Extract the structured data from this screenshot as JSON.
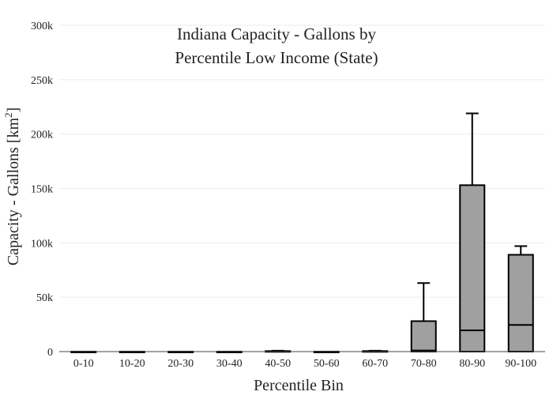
{
  "chart_data": {
    "type": "box",
    "title_lines": [
      "Indiana Capacity - Gallons by",
      "Percentile Low Income (State)"
    ],
    "xlabel": "Percentile Bin",
    "ylabel": {
      "main": "Capacity - Gallons  [km",
      "sup": "2",
      "close": "]"
    },
    "categories": [
      "0-10",
      "10-20",
      "20-30",
      "30-40",
      "40-50",
      "50-60",
      "60-70",
      "70-80",
      "80-90",
      "90-100"
    ],
    "boxes": [
      {
        "q1": 0,
        "median": 0,
        "q3": 0,
        "whisker_high": 0
      },
      {
        "q1": 0,
        "median": 0,
        "q3": 0,
        "whisker_high": 0
      },
      {
        "q1": 0,
        "median": 0,
        "q3": 0,
        "whisker_high": 0
      },
      {
        "q1": 0,
        "median": 0,
        "q3": 0,
        "whisker_high": 0
      },
      {
        "q1": 0,
        "median": 200,
        "q3": 500,
        "whisker_high": 800
      },
      {
        "q1": 0,
        "median": 0,
        "q3": 0,
        "whisker_high": 0
      },
      {
        "q1": 0,
        "median": 200,
        "q3": 500,
        "whisker_high": 800
      },
      {
        "q1": 0,
        "median": 1000,
        "q3": 28000,
        "whisker_high": 63000
      },
      {
        "q1": 0,
        "median": 19500,
        "q3": 153000,
        "whisker_high": 219000
      },
      {
        "q1": 0,
        "median": 24500,
        "q3": 89000,
        "whisker_high": 97000
      }
    ],
    "y_ticks": [
      0,
      50000,
      100000,
      150000,
      200000,
      250000,
      300000
    ],
    "y_tick_labels": [
      "0",
      "50k",
      "100k",
      "150k",
      "200k",
      "250k",
      "300k"
    ],
    "ylim": [
      0,
      300000
    ],
    "grid": true,
    "legend": "none",
    "colors": {
      "box_fill": "#a0a0a0",
      "box_stroke": "#000000",
      "grid": "#ececec",
      "axis": "#444444"
    }
  }
}
